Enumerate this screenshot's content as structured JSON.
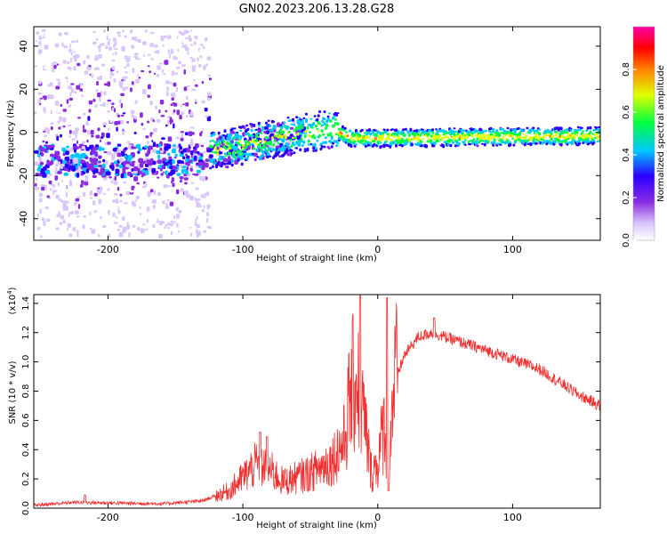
{
  "title": "GN02.2023.206.13.28.G28",
  "chart_data": [
    {
      "type": "heatmap",
      "title": "GN02.2023.206.13.28.G28",
      "xlabel": "Height of straight line (km)",
      "ylabel": "Frequency (Hz)",
      "xlim": [
        -255,
        165
      ],
      "ylim": [
        -50,
        49
      ],
      "xticks": [
        -200,
        -100,
        0,
        100
      ],
      "yticks": [
        -40,
        -20,
        0,
        20,
        40
      ],
      "colorbar": {
        "label": "Normalized spectral amplitude",
        "range": [
          0.0,
          1.0
        ],
        "ticks": [
          0.0,
          0.2,
          0.4,
          0.6,
          0.8
        ],
        "tick_labels": [
          "0.0",
          "0.2",
          "0.4",
          "0.6",
          "0.8"
        ],
        "colormap": [
          "#ffffff",
          "#d9c7fb",
          "#8a2be2",
          "#2a00ff",
          "#00c8ff",
          "#00ff40",
          "#e0ff00",
          "#ff8000",
          "#ff0000",
          "#ff00aa"
        ]
      },
      "features": {
        "scatter_region_x": [
          -255,
          -125
        ],
        "scatter_spread_hz": 48,
        "band_start_km": -125,
        "band_end_km": 165,
        "band_center_hz": [
          {
            "x": -125,
            "f": -8
          },
          {
            "x": -60,
            "f": 0
          },
          {
            "x": -35,
            "f": 2
          },
          {
            "x": -20,
            "f": -2
          },
          {
            "x": 0,
            "f": -2
          },
          {
            "x": 165,
            "f": -1
          }
        ]
      }
    },
    {
      "type": "line",
      "xlabel": "Height of straight line (km)",
      "ylabel": "SNR (10 * v/v)",
      "y_scale_label": "(x10",
      "y_scale_exp": "4",
      "y_scale_close": ")",
      "xlim": [
        -255,
        165
      ],
      "ylim": [
        0,
        1.46
      ],
      "xticks": [
        -200,
        -100,
        0,
        100
      ],
      "yticks": [
        0.0,
        0.2,
        0.4,
        0.6,
        0.8,
        1.0,
        1.2,
        1.4
      ],
      "ytick_labels": [
        "0.0",
        "0.2",
        "0.4",
        "0.6",
        "0.8",
        "1.0",
        "1.2",
        "1.4"
      ],
      "series": [
        {
          "name": "SNR",
          "color": "#f03030",
          "envelope": [
            {
              "x": -255,
              "y": 0.02
            },
            {
              "x": -225,
              "y": 0.04
            },
            {
              "x": -160,
              "y": 0.03
            },
            {
              "x": -130,
              "y": 0.05
            },
            {
              "x": -110,
              "y": 0.12
            },
            {
              "x": -90,
              "y": 0.3
            },
            {
              "x": -80,
              "y": 0.26
            },
            {
              "x": -70,
              "y": 0.18
            },
            {
              "x": -50,
              "y": 0.24
            },
            {
              "x": -35,
              "y": 0.32
            },
            {
              "x": -25,
              "y": 0.45
            },
            {
              "x": -20,
              "y": 0.8
            },
            {
              "x": -15,
              "y": 0.9
            },
            {
              "x": -10,
              "y": 0.6
            },
            {
              "x": -5,
              "y": 0.25
            },
            {
              "x": 0,
              "y": 0.3
            },
            {
              "x": 5,
              "y": 0.6
            },
            {
              "x": 8,
              "y": 0.3
            },
            {
              "x": 12,
              "y": 0.85
            },
            {
              "x": 20,
              "y": 1.05
            },
            {
              "x": 30,
              "y": 1.17
            },
            {
              "x": 40,
              "y": 1.2
            },
            {
              "x": 60,
              "y": 1.14
            },
            {
              "x": 90,
              "y": 1.05
            },
            {
              "x": 120,
              "y": 0.95
            },
            {
              "x": 150,
              "y": 0.77
            },
            {
              "x": 165,
              "y": 0.7
            }
          ],
          "peaks": [
            {
              "x": -13,
              "y": 1.46
            },
            {
              "x": 7,
              "y": 1.44
            },
            {
              "x": 8,
              "y": 0.12
            },
            {
              "x": -87,
              "y": 0.52
            },
            {
              "x": -82,
              "y": 0.49
            },
            {
              "x": -217,
              "y": 0.09
            },
            {
              "x": 42,
              "y": 1.3
            }
          ]
        }
      ]
    }
  ]
}
